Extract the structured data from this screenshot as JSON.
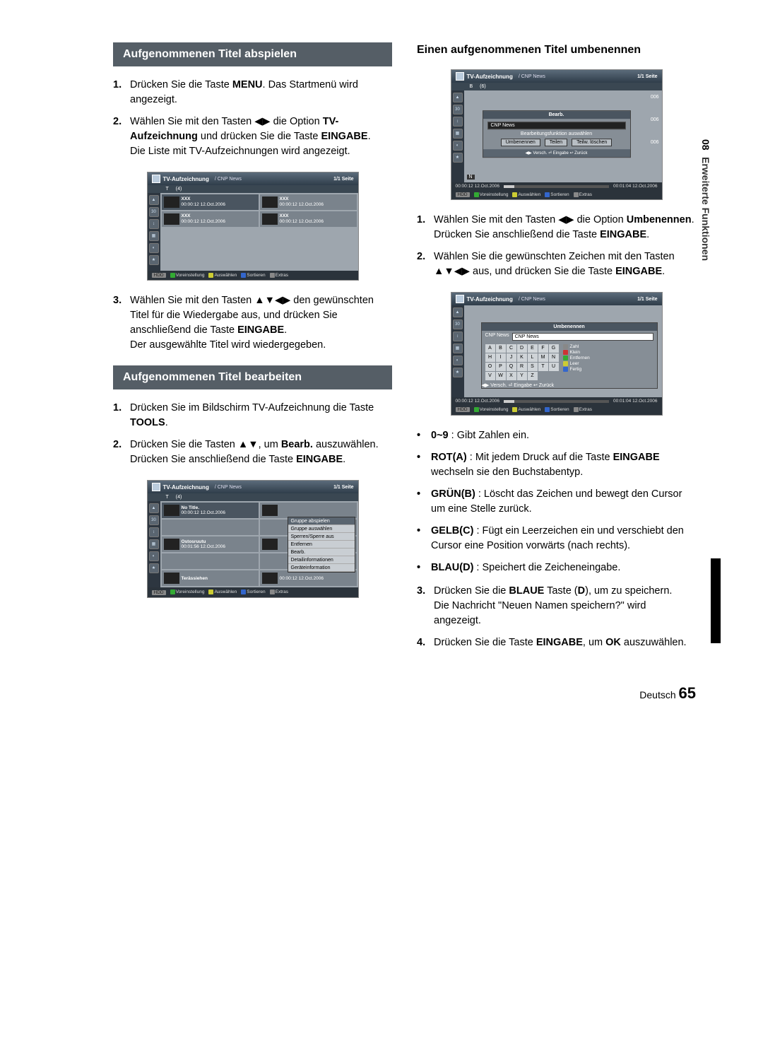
{
  "sideTab": {
    "num": "08",
    "text": "Erweiterte Funktionen"
  },
  "left": {
    "h1": "Aufgenommenen Titel abspielen",
    "steps1": [
      "Drücken Sie die Taste <b>MENU</b>. Das Startmenü wird angezeigt.",
      "Wählen Sie mit den Tasten ◀▶ die Option <b>TV-Aufzeichnung</b> und drücken Sie die Taste <b>EINGABE</b>.<br>Die Liste mit TV-Aufzeichnungen wird angezeigt."
    ],
    "steps1b": [
      "Wählen Sie mit den Tasten ▲▼◀▶ den gewünschten Titel für die Wiedergabe aus, und drücken Sie anschließend die Taste <b>EINGABE</b>.<br>Der ausgewählte Titel wird wiedergegeben."
    ],
    "h2": "Aufgenommenen Titel bearbeiten",
    "steps2": [
      "Drücken Sie im Bildschirm TV-Aufzeichnung die Taste <b>TOOLS</b>.",
      "Drücken Sie die Tasten ▲▼, um <b>Bearb.</b> auszuwählen. Drücken Sie anschließend die Taste <b>EINGABE</b>."
    ]
  },
  "right": {
    "h1": "Einen aufgenommenen Titel umbenennen",
    "steps1": [
      "Wählen Sie mit den Tasten ◀▶ die Option <b>Umbenennen</b>. Drücken Sie anschließend die Taste <b>EINGABE</b>.",
      "Wählen Sie die gewünschten Zeichen mit den Tasten ▲▼◀▶ aus, und drücken Sie die Taste <b>EINGABE</b>."
    ],
    "bullets": [
      "<b>0~9</b> : Gibt Zahlen ein.",
      "<b>ROT(A)</b> : Mit jedem Druck auf die Taste <b>EINGABE</b> wechseln sie den Buchstabentyp.",
      "<b>GRÜN(B)</b> : Löscht das Zeichen und bewegt den Cursor um eine Stelle zurück.",
      "<b>GELB(C)</b> : Fügt ein Leerzeichen ein und verschiebt den Cursor eine Position vorwärts (nach rechts).",
      "<b>BLAU(D)</b> : Speichert die Zeicheneingabe."
    ],
    "steps2": [
      "Drücken Sie die <b>BLAUE</b> Taste (<b>D</b>), um zu speichern.<br>Die Nachricht \"Neuen Namen speichern?\" wird angezeigt.",
      "Drücken Sie die Taste <b>EINGABE</b>, um <b>OK</b> auszuwählen."
    ]
  },
  "shots": {
    "title": "TV-Aufzeichnung",
    "sub": "/ CNP News",
    "page": "1/1 Seite",
    "tabT": "T",
    "tabB": "B",
    "count4": "(4)",
    "count6": "(6)",
    "xxx": "XXX",
    "ts": "00:00:12  12.Oct.2006",
    "notitle": "No Title.",
    "ost": "Ostosruutu",
    "ost_ts": "00:01:56  12.Oct.2006",
    "ter": "Terässiehen",
    "foot": {
      "hdd": "HDD",
      "b": "Voreinstellung",
      "c": "Auswählen",
      "d": "Sortieren",
      "t": "Extras"
    },
    "popup": [
      "Gruppe abspielen",
      "Gruppe auswählen",
      "Sperren/Sperre aus",
      "Entfernen",
      "Bearb.",
      "Detailinformationen",
      "Geräteinformation"
    ],
    "bearb": {
      "title": "Bearb.",
      "field": "CNP News",
      "msg": "Bearbeitungsfunktion auswählen",
      "btn1": "Umbenennen",
      "btn2": "Teilen",
      "btn3": "Teilw. löschen",
      "foot": "◀▶ Versch.   ⏎ Eingabe   ↩ Zurück",
      "time_l": "00:00:12 12.Oct.2006",
      "time_r": "00:01:04 12.Oct.2006",
      "tag006": "006"
    },
    "umb": {
      "title": "Umbenennen",
      "field": "CNP News",
      "keys": [
        "A",
        "B",
        "C",
        "D",
        "E",
        "F",
        "G",
        "H",
        "I",
        "J",
        "K",
        "L",
        "M",
        "N",
        "O",
        "P",
        "Q",
        "R",
        "S",
        "T",
        "U",
        "V",
        "W",
        "X",
        "Y",
        "Z"
      ],
      "r": [
        [
          "0~9",
          "Zahl"
        ],
        [
          "A",
          "Klein"
        ],
        [
          "B",
          "Entfernen"
        ],
        [
          "C",
          "Leer"
        ],
        [
          "D",
          "Fertig"
        ]
      ],
      "foot": "◀▶ Versch.   ⏎ Eingabe   ↩ Zurück"
    },
    "navN": "N"
  },
  "footer": {
    "lang": "Deutsch",
    "page": "65"
  }
}
